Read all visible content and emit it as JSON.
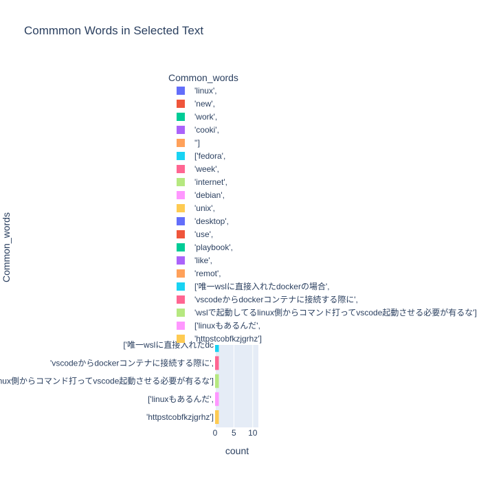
{
  "chart_data": {
    "type": "bar",
    "orientation": "horizontal",
    "title": "Commmon Words in Selected Text",
    "xlabel": "count",
    "ylabel": "Common_words",
    "xlim": [
      0,
      11.5
    ],
    "xticks": [
      "0",
      "5",
      "10"
    ],
    "grid": true,
    "legend": {
      "title": "Common_words",
      "placement": "top-right",
      "entries": [
        {
          "label": "'linux',",
          "color": "#636efa"
        },
        {
          "label": "'new',",
          "color": "#EF553B"
        },
        {
          "label": "'work',",
          "color": "#00cc96"
        },
        {
          "label": "'cooki',",
          "color": "#ab63fa"
        },
        {
          "label": "'']",
          "color": "#FFA15A"
        },
        {
          "label": "['fedora',",
          "color": "#19d3f3"
        },
        {
          "label": "'week',",
          "color": "#FF6692"
        },
        {
          "label": "'internet',",
          "color": "#B6E880"
        },
        {
          "label": "'debian',",
          "color": "#FF97FF"
        },
        {
          "label": "'unix',",
          "color": "#FECB52"
        },
        {
          "label": "'desktop',",
          "color": "#636efa"
        },
        {
          "label": "'use',",
          "color": "#EF553B"
        },
        {
          "label": "'playbook',",
          "color": "#00cc96"
        },
        {
          "label": "'like',",
          "color": "#ab63fa"
        },
        {
          "label": "'remot',",
          "color": "#FFA15A"
        },
        {
          "label": "['唯一wslに直接入れたdockerの場合',",
          "color": "#19d3f3"
        },
        {
          "label": "'vscodeからdockerコンテナに接続する際に',",
          "color": "#FF6692"
        },
        {
          "label": "'wslで起動してるlinux側からコマンド打ってvscode起動させる必要が有るな']",
          "color": "#B6E880"
        },
        {
          "label": "['linuxもあるんだ',",
          "color": "#FF97FF"
        },
        {
          "label": "'httpstcobfkzjgrhz']",
          "color": "#FECB52"
        }
      ]
    },
    "visible_categories": [
      {
        "label": "['唯一wslに直接入れたdc",
        "value": 1,
        "color": "#19d3f3"
      },
      {
        "label": "'vscodeからdockerコンテナに接続する際に',",
        "value": 1,
        "color": "#FF6692"
      },
      {
        "label": "nux側からコマンド打ってvscode起動させる必要が有るな']",
        "value": 1,
        "color": "#B6E880"
      },
      {
        "label": "['linuxもあるんだ',",
        "value": 1,
        "color": "#FF97FF"
      },
      {
        "label": "'httpstcobfkzjgrhz']",
        "value": 1,
        "color": "#FECB52"
      }
    ]
  }
}
